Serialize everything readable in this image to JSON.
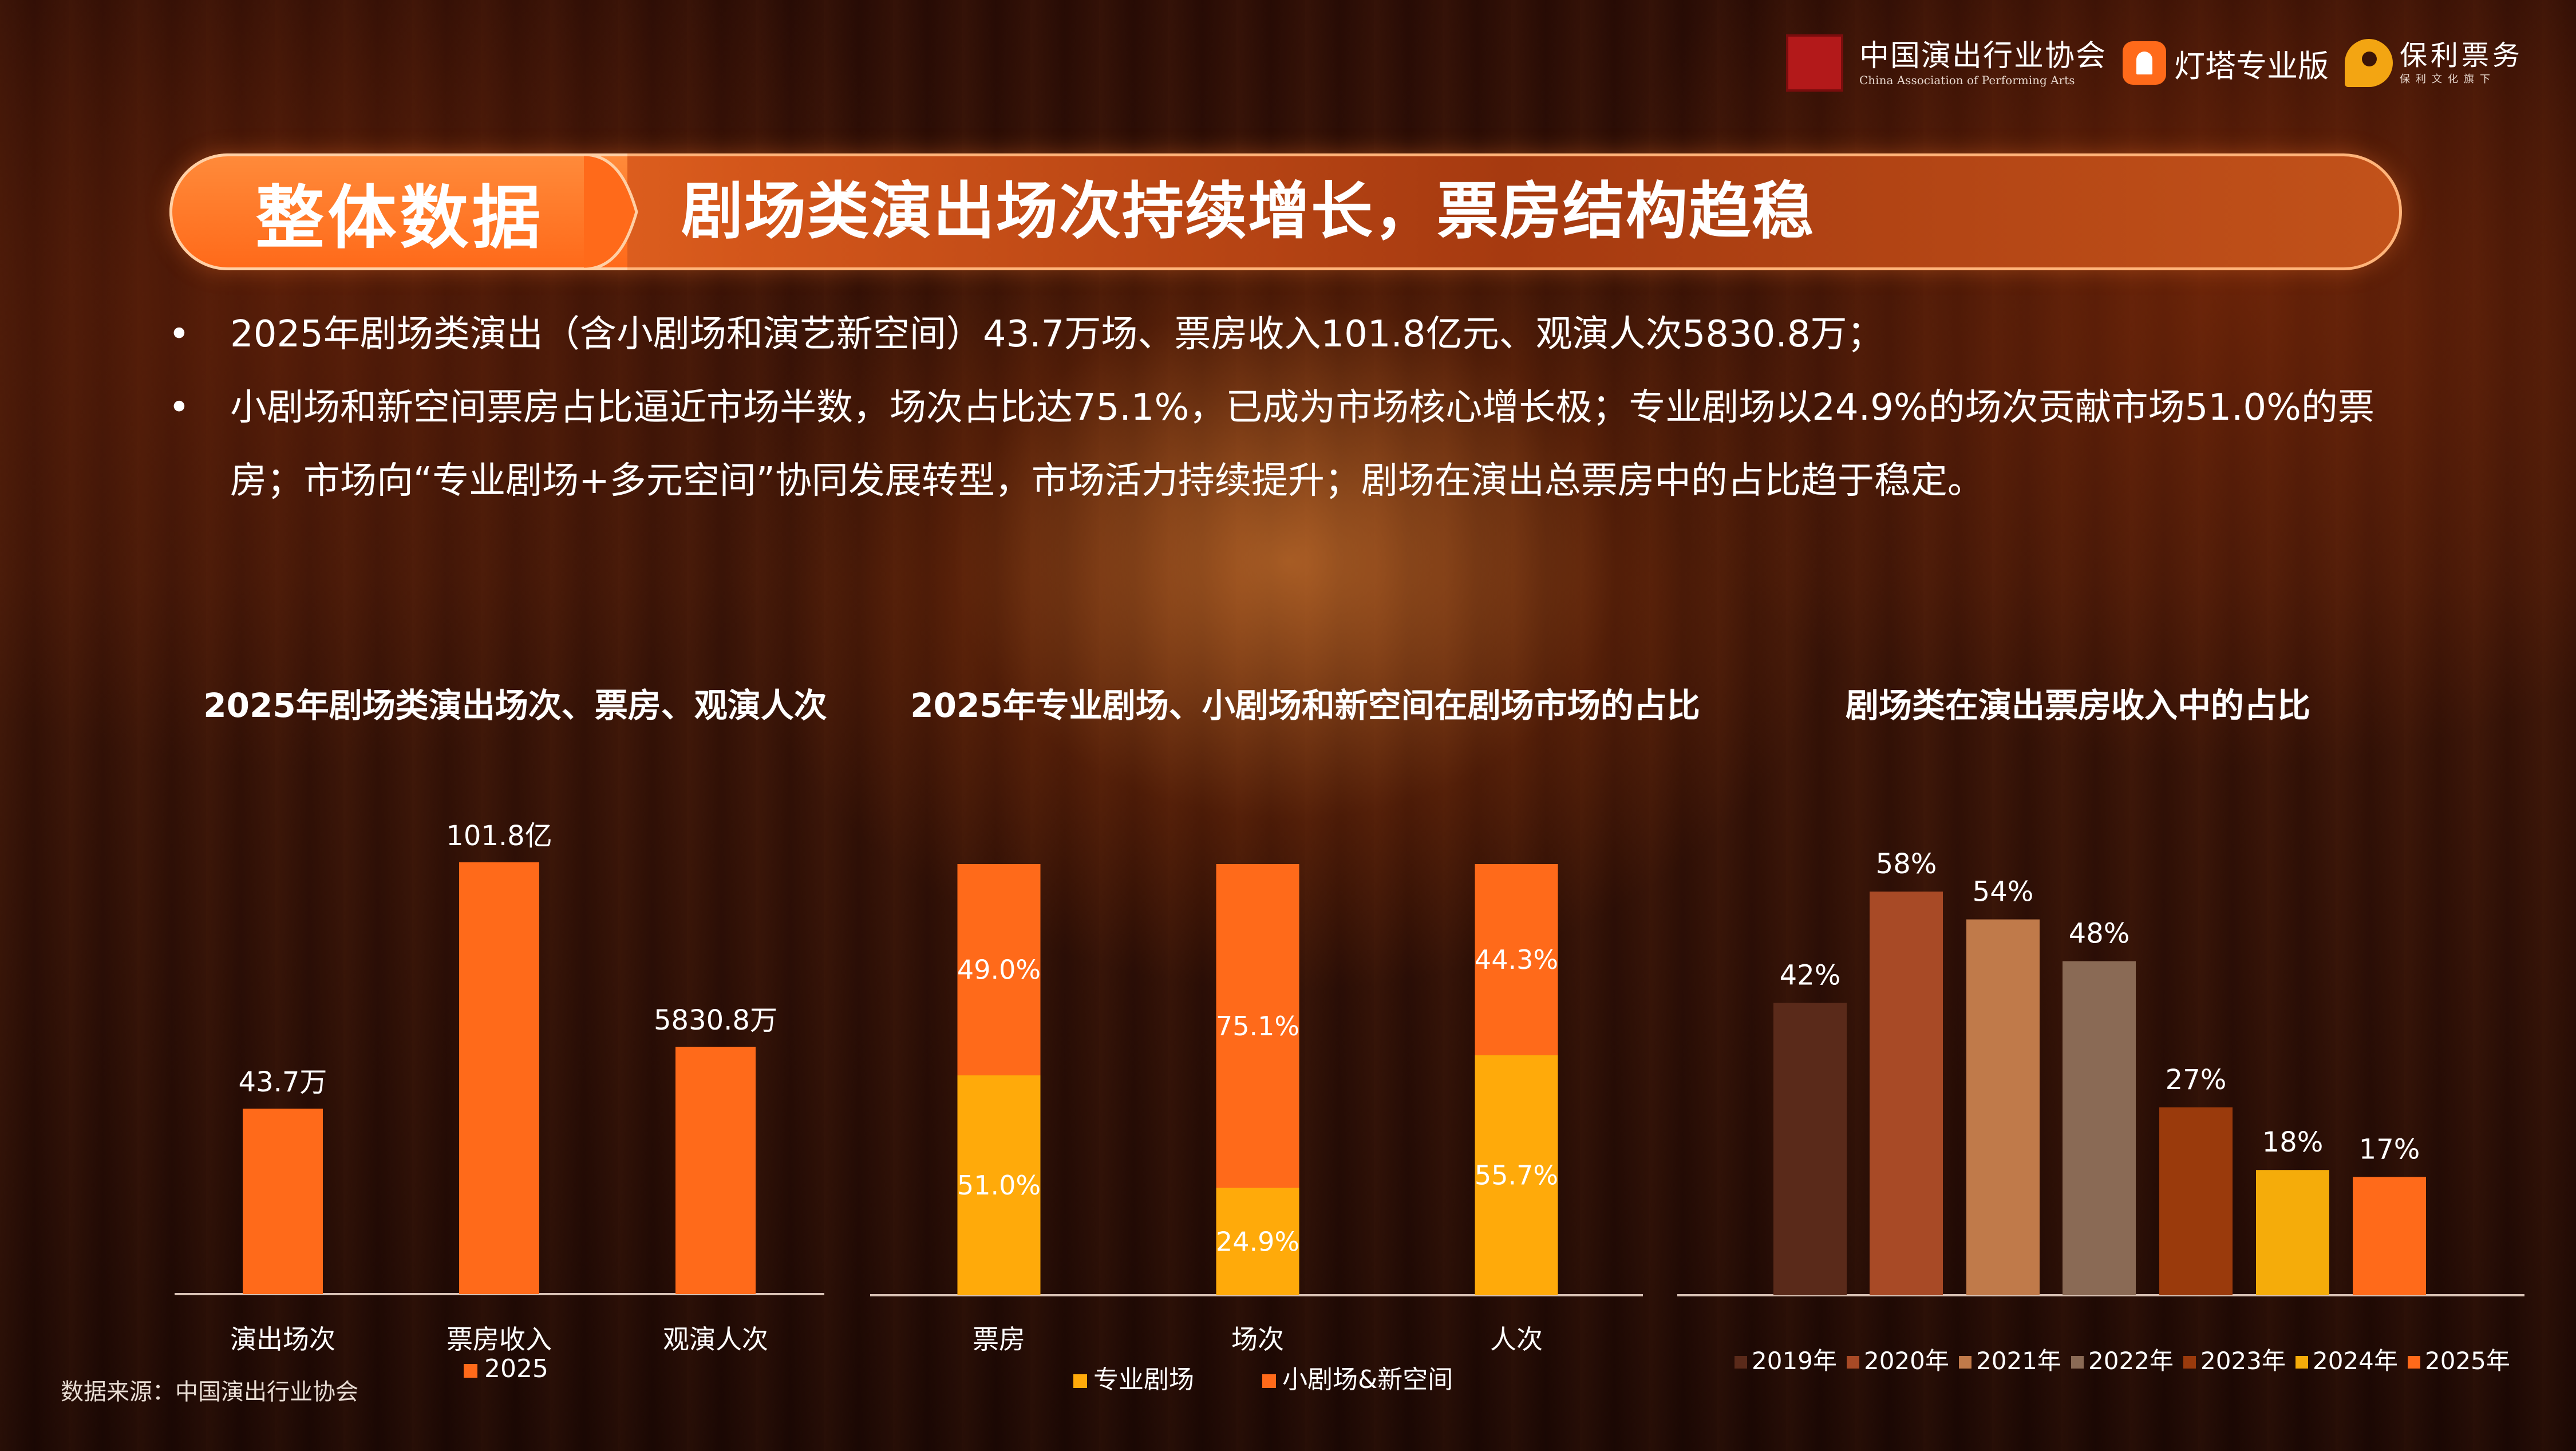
{
  "logos": {
    "caa_cn": "中国演出行业协会",
    "caa_en": "China Association of Performing Arts",
    "dengta": "灯塔专业版",
    "poly_cn": "保利票务",
    "poly_sub": "保利文化旗下"
  },
  "banner": {
    "tag": "整体数据",
    "title": "剧场类演出场次持续增长，票房结构趋稳"
  },
  "bullets": [
    "2025年剧场类演出（含小剧场和演艺新空间）43.7万场、票房收入101.8亿元、观演人次5830.8万；",
    "小剧场和新空间票房占比逼近市场半数，场次占比达75.1%，已成为市场核心增长极；专业剧场以24.9%的场次贡献市场51.0%的票房；市场向“专业剧场+多元空间”协同发展转型，市场活力持续提升；剧场在演出总票房中的占比趋于稳定。"
  ],
  "colors": {
    "orange": "#ff6a1a",
    "gold": "#ffaa0a",
    "y2019": "#5a2a1a",
    "y2020": "#a84a26",
    "y2021": "#c07a4a",
    "y2022": "#8a6a55",
    "y2023": "#9a3a0c",
    "y2024": "#f5ac0a",
    "y2025": "#ff6a1a"
  },
  "chart_data": [
    {
      "type": "bar",
      "title": "2025年剧场类演出场次、票房、观演人次",
      "categories": [
        "演出场次",
        "票房收入",
        "观演人次"
      ],
      "series": [
        {
          "name": "2025",
          "values": [
            43.7,
            101.8,
            58.308
          ]
        }
      ],
      "data_labels": [
        "43.7万",
        "101.8亿",
        "5830.8万"
      ],
      "legend": "bottom",
      "ylim": [
        0,
        110
      ]
    },
    {
      "type": "bar",
      "stacked": true,
      "title": "2025年专业剧场、小剧场和新空间在剧场市场的占比",
      "categories": [
        "票房",
        "场次",
        "人次"
      ],
      "series": [
        {
          "name": "专业剧场",
          "values": [
            51.0,
            24.9,
            55.7
          ],
          "labels": [
            "51.0%",
            "24.9%",
            "55.7%"
          ]
        },
        {
          "name": "小剧场&新空间",
          "values": [
            49.0,
            75.1,
            44.3
          ],
          "labels": [
            "49.0%",
            "75.1%",
            "44.3%"
          ]
        }
      ],
      "legend": "bottom",
      "ylim": [
        0,
        100
      ]
    },
    {
      "type": "bar",
      "title": "剧场类在演出票房收入中的占比",
      "categories": [
        "2019年",
        "2020年",
        "2021年",
        "2022年",
        "2023年",
        "2024年",
        "2025年"
      ],
      "values": [
        42,
        58,
        54,
        48,
        27,
        18,
        17
      ],
      "data_labels": [
        "42%",
        "58%",
        "54%",
        "48%",
        "27%",
        "18%",
        "17%"
      ],
      "legend": "bottom",
      "ylim": [
        0,
        65
      ]
    }
  ],
  "source": "数据来源：中国演出行业协会"
}
